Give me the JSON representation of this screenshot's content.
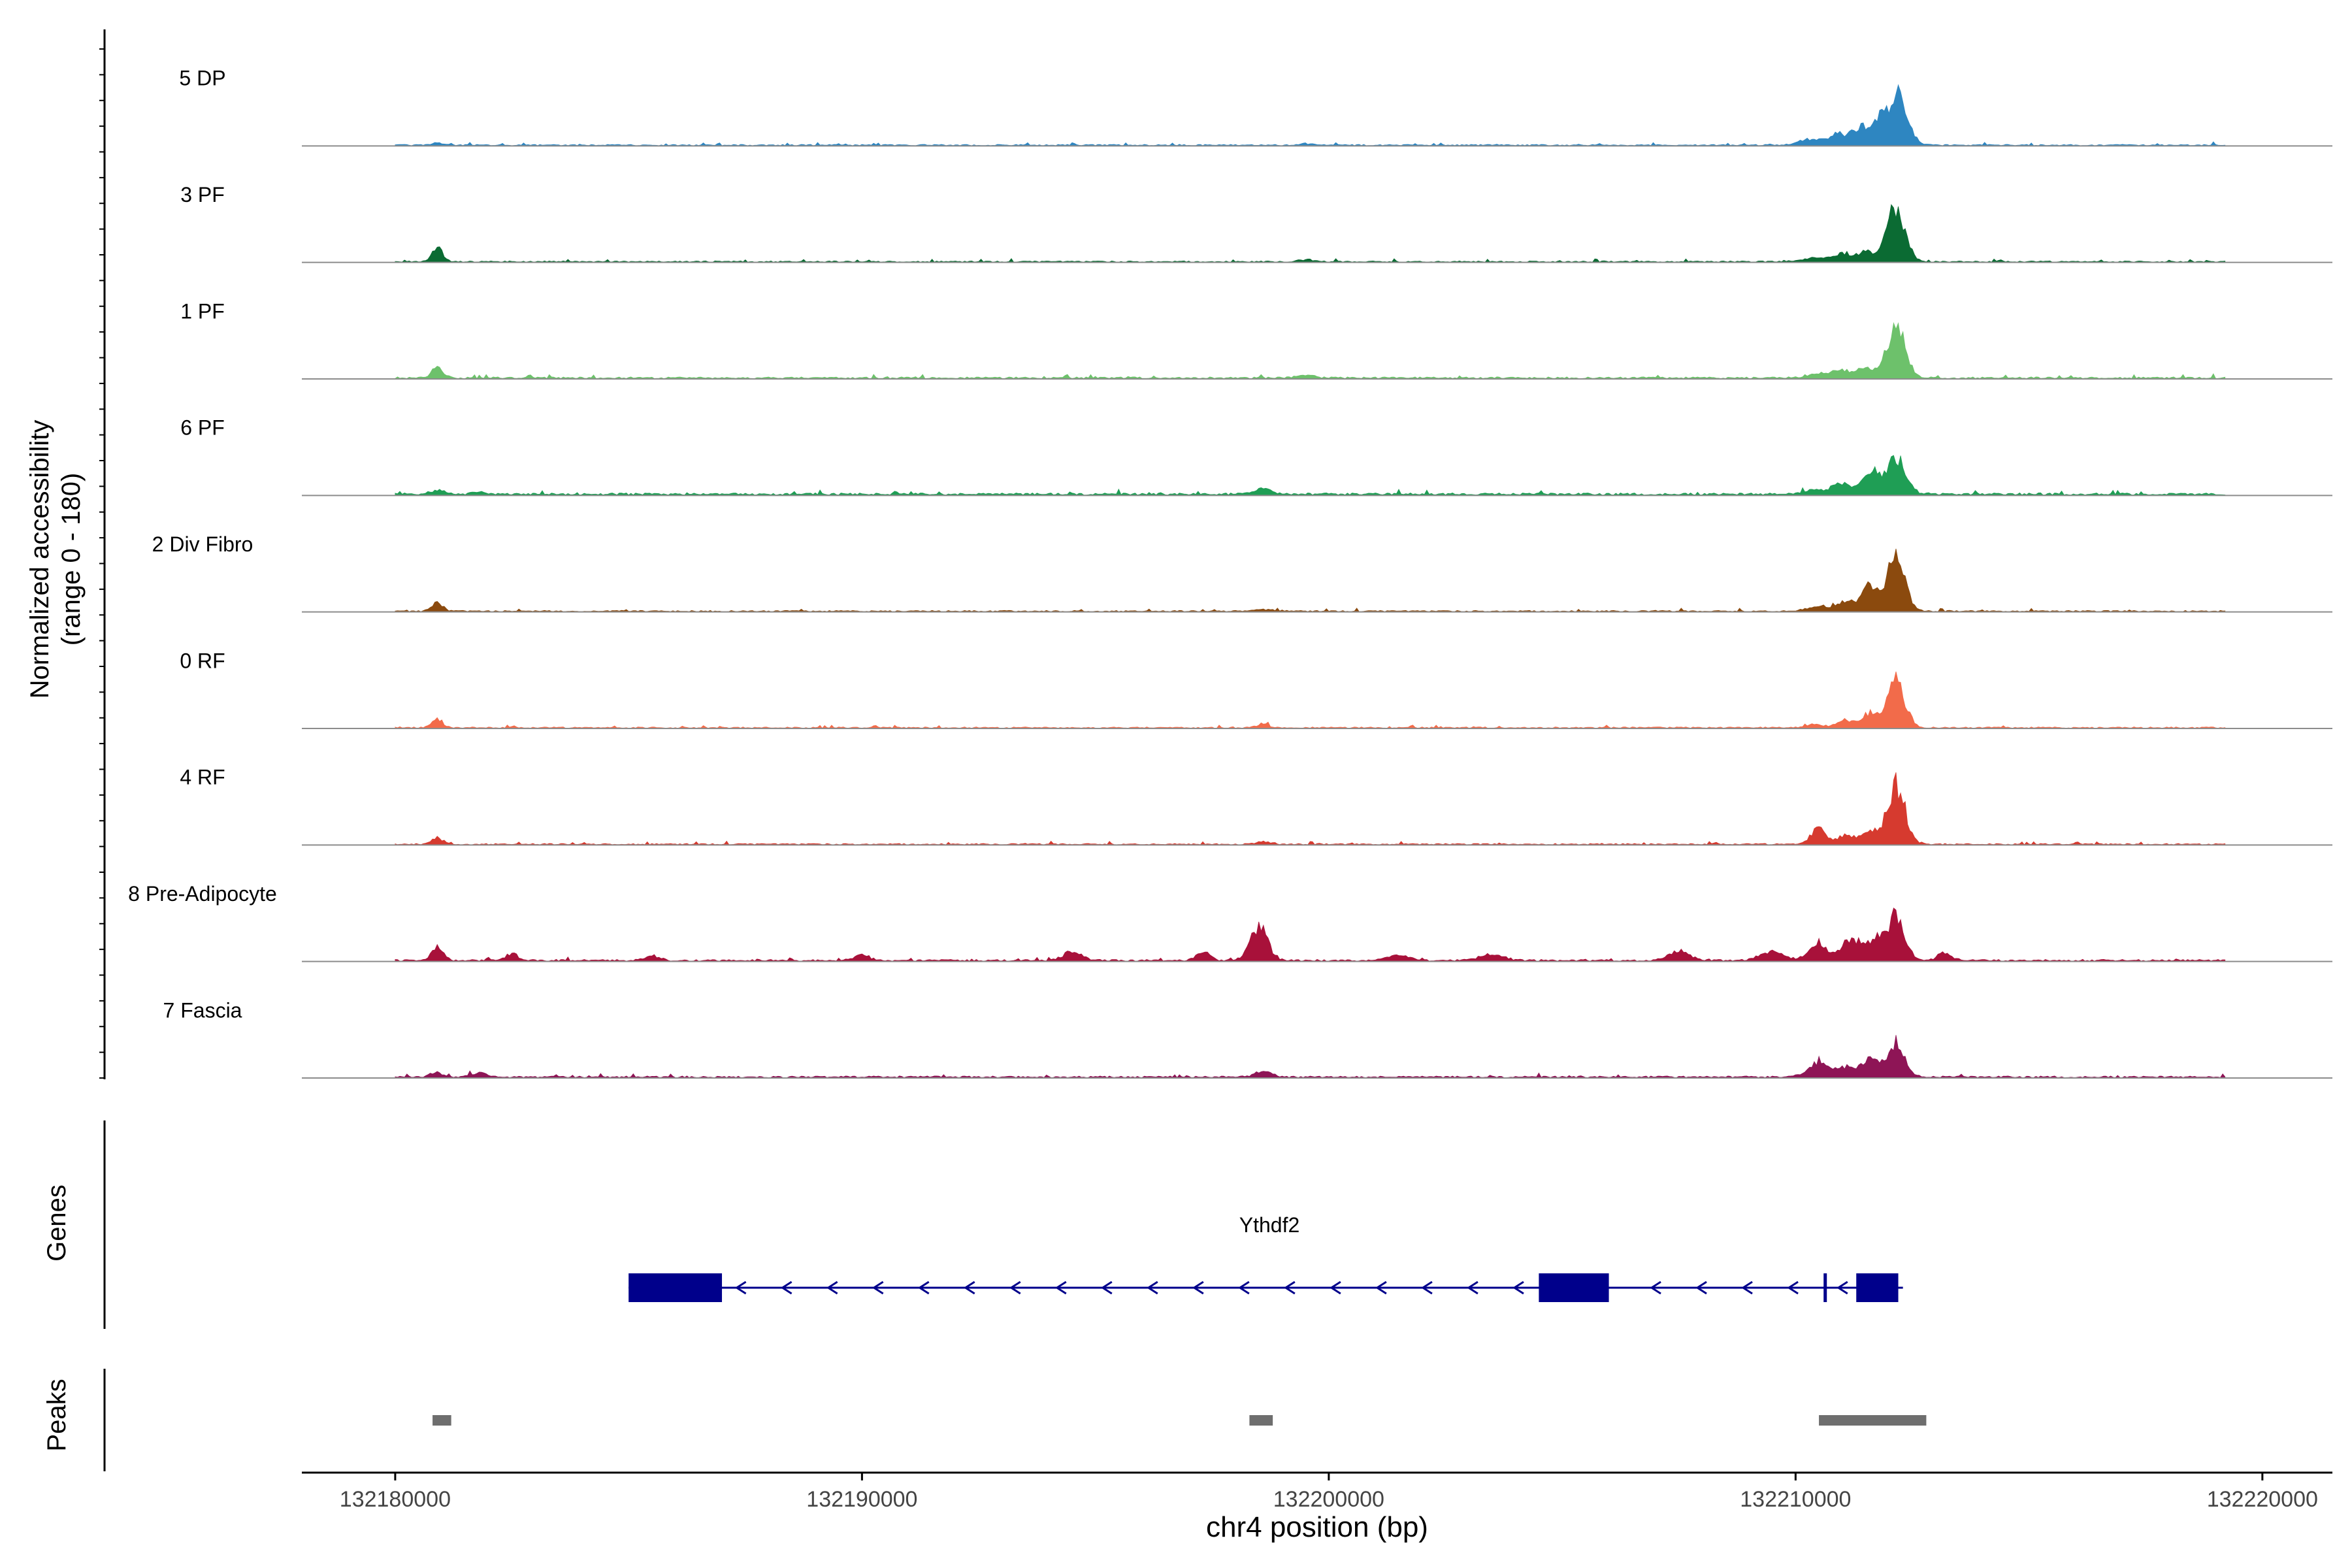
{
  "chart_data": {
    "type": "area",
    "title": "",
    "ylabel": "Normalized accessibility",
    "ylabel_range": "(range 0 - 180)",
    "yrange": [
      0,
      180
    ],
    "xlabel": "chr4 position (bp)",
    "xlim": [
      132178000,
      132221500
    ],
    "xticks": [
      132180000,
      132190000,
      132200000,
      132210000,
      132220000
    ],
    "xtick_labels": [
      "132180000",
      "132190000",
      "132200000",
      "132210000",
      "132220000"
    ],
    "tracks": [
      {
        "name": "5 DP",
        "color": "#2E86C1",
        "baseline": 1.5,
        "peaks": [
          [
            132180900,
            5,
            110
          ],
          [
            132199500,
            3,
            140
          ],
          [
            132210300,
            12,
            220
          ],
          [
            132210900,
            22,
            220
          ],
          [
            132211400,
            38,
            160
          ],
          [
            132211800,
            50,
            130
          ],
          [
            132212200,
            100,
            200
          ]
        ]
      },
      {
        "name": "3 PF",
        "color": "#0B6B33",
        "baseline": 1.5,
        "peaks": [
          [
            132180900,
            28,
            110
          ],
          [
            132199500,
            4,
            140
          ],
          [
            132210400,
            8,
            250
          ],
          [
            132211000,
            18,
            200
          ],
          [
            132211500,
            20,
            160
          ],
          [
            132212150,
            110,
            190
          ]
        ]
      },
      {
        "name": "1 PF",
        "color": "#6DC16B",
        "baseline": 2,
        "peaks": [
          [
            132180900,
            22,
            120
          ],
          [
            132199500,
            5,
            180
          ],
          [
            132210500,
            8,
            250
          ],
          [
            132211000,
            15,
            200
          ],
          [
            132211500,
            20,
            160
          ],
          [
            132212150,
            100,
            200
          ]
        ]
      },
      {
        "name": "6 PF",
        "color": "#1F9E55",
        "baseline": 2.5,
        "peaks": [
          [
            132180900,
            8,
            150
          ],
          [
            132181800,
            4,
            150
          ],
          [
            132198600,
            12,
            160
          ],
          [
            132210400,
            8,
            250
          ],
          [
            132211000,
            22,
            200
          ],
          [
            132211600,
            45,
            170
          ],
          [
            132212150,
            78,
            200
          ]
        ]
      },
      {
        "name": "2 Div Fibro",
        "color": "#8B4A0E",
        "baseline": 1.5,
        "peaks": [
          [
            132180900,
            18,
            110
          ],
          [
            132198600,
            4,
            250
          ],
          [
            132210500,
            10,
            250
          ],
          [
            132211100,
            20,
            180
          ],
          [
            132211600,
            55,
            160
          ],
          [
            132212150,
            110,
            190
          ]
        ]
      },
      {
        "name": "0 RF",
        "color": "#F26B4A",
        "baseline": 1.5,
        "peaks": [
          [
            132180900,
            18,
            110
          ],
          [
            132198600,
            8,
            120
          ],
          [
            132210400,
            6,
            200
          ],
          [
            132211100,
            15,
            200
          ],
          [
            132211600,
            30,
            160
          ],
          [
            132212150,
            95,
            190
          ]
        ]
      },
      {
        "name": "4 RF",
        "color": "#D63A2F",
        "baseline": 1.5,
        "peaks": [
          [
            132180900,
            14,
            110
          ],
          [
            132198600,
            6,
            140
          ],
          [
            132210500,
            30,
            170
          ],
          [
            132211100,
            18,
            180
          ],
          [
            132211600,
            28,
            160
          ],
          [
            132212150,
            120,
            190
          ]
        ]
      },
      {
        "name": "8 Pre-Adipocyte",
        "color": "#A8113A",
        "baseline": 2,
        "peaks": [
          [
            132180900,
            30,
            120
          ],
          [
            132182500,
            12,
            150
          ],
          [
            132185500,
            10,
            150
          ],
          [
            132190000,
            12,
            150
          ],
          [
            132194500,
            18,
            200
          ],
          [
            132197300,
            20,
            140
          ],
          [
            132198500,
            70,
            180
          ],
          [
            132201500,
            10,
            250
          ],
          [
            132203500,
            12,
            250
          ],
          [
            132207500,
            15,
            250
          ],
          [
            132209500,
            20,
            250
          ],
          [
            132210500,
            35,
            200
          ],
          [
            132211200,
            45,
            200
          ],
          [
            132211700,
            40,
            160
          ],
          [
            132212150,
            90,
            190
          ],
          [
            132213200,
            15,
            150
          ]
        ]
      },
      {
        "name": "7 Fascia",
        "color": "#8E1556",
        "baseline": 2,
        "peaks": [
          [
            132180900,
            10,
            130
          ],
          [
            132181800,
            8,
            160
          ],
          [
            132198600,
            14,
            160
          ],
          [
            132210500,
            28,
            220
          ],
          [
            132211100,
            20,
            200
          ],
          [
            132211600,
            35,
            180
          ],
          [
            132212150,
            75,
            180
          ]
        ]
      }
    ],
    "genes": {
      "label": "Genes",
      "name": "Ythdf2",
      "strand": "-",
      "line_start": 132185000,
      "line_end": 132212300,
      "exons": [
        [
          132185000,
          132187000
        ],
        [
          132204500,
          132206000
        ],
        [
          132210600,
          132210650
        ],
        [
          132211300,
          132212200
        ]
      ],
      "color": "#00008B"
    },
    "peaks": {
      "label": "Peaks",
      "regions": [
        [
          132180800,
          132181200
        ],
        [
          132198300,
          132198800
        ],
        [
          132210500,
          132212800
        ]
      ],
      "color": "#6E6E6E"
    }
  }
}
